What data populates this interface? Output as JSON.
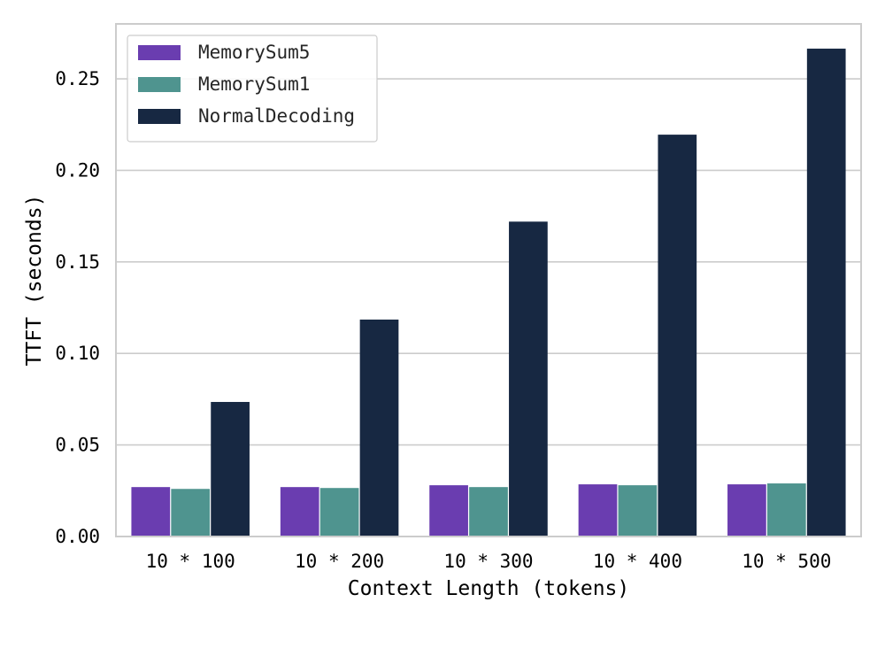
{
  "chart_data": {
    "type": "bar",
    "title": "",
    "xlabel": "Context Length (tokens)",
    "ylabel": "TTFT (seconds)",
    "categories": [
      "10 * 100",
      "10 * 200",
      "10 * 300",
      "10 * 400",
      "10 * 500"
    ],
    "series": [
      {
        "name": "MemorySum5",
        "color": "#6a3db0",
        "values": [
          0.027,
          0.027,
          0.028,
          0.0285,
          0.0285
        ]
      },
      {
        "name": "MemorySum1",
        "color": "#4f948f",
        "values": [
          0.026,
          0.0265,
          0.027,
          0.028,
          0.029
        ]
      },
      {
        "name": "NormalDecoding",
        "color": "#172842",
        "values": [
          0.0735,
          0.1185,
          0.172,
          0.2195,
          0.2665
        ]
      }
    ],
    "ylim": [
      0,
      0.28
    ],
    "yticks": [
      "0.00",
      "0.05",
      "0.10",
      "0.15",
      "0.20",
      "0.25"
    ],
    "grid": true,
    "legend_position": "top-left",
    "colors": {
      "grid": "#cccccc",
      "frame": "#cccccc",
      "background": "#ffffff"
    }
  }
}
